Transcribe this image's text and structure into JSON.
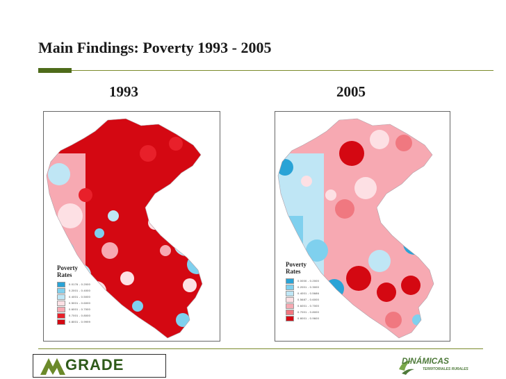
{
  "slide": {
    "title": "Main Findings:  Poverty 1993 - 2005"
  },
  "maps": [
    {
      "year": "1993",
      "legend": {
        "title_line1": "Poverty",
        "title_line2": "Rates",
        "items": [
          {
            "label": "0.0176 - 0.2000",
            "color": "#2aa3d6"
          },
          {
            "label": "0.2001 - 0.4000",
            "color": "#7fd0ee"
          },
          {
            "label": "0.4001 - 0.5000",
            "color": "#bfe6f5"
          },
          {
            "label": "0.5001 - 0.6000",
            "color": "#fde0e4"
          },
          {
            "label": "0.6001 - 0.7000",
            "color": "#f7a9b2"
          },
          {
            "label": "0.7001 - 0.8000",
            "color": "#e8202a"
          },
          {
            "label": "0.8001 - 0.9999",
            "color": "#d40812"
          }
        ]
      }
    },
    {
      "year": "2005",
      "legend": {
        "title_line1": "Poverty",
        "title_line2": "Rates",
        "items": [
          {
            "label": "0.0000 - 0.2000",
            "color": "#2aa3d6"
          },
          {
            "label": "0.2001 - 0.3000",
            "color": "#7fd0ee"
          },
          {
            "label": "0.4001 - 0.5686",
            "color": "#bfe6f5"
          },
          {
            "label": "0.5687 - 0.6000",
            "color": "#fde0e4"
          },
          {
            "label": "0.6001 - 0.7000",
            "color": "#f7a9b2"
          },
          {
            "label": "0.7001 - 0.8000",
            "color": "#f07880"
          },
          {
            "label": "0.8001 - 0.9600",
            "color": "#d40812"
          }
        ]
      }
    }
  ],
  "footer": {
    "left_logo": "GRADE",
    "right_logo": "DINÁMICAS",
    "right_logo_sub": "TERRITORIALES RURALES"
  }
}
